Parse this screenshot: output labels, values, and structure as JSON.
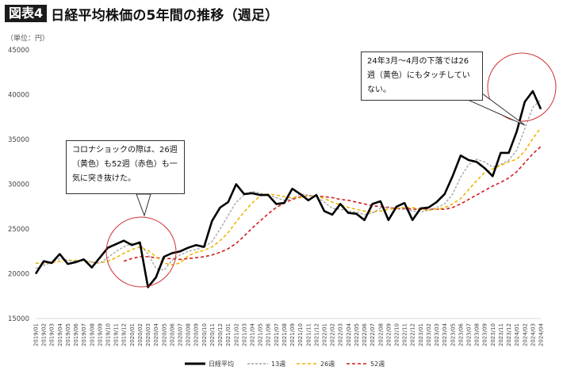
{
  "header": {
    "badge": "図表4",
    "title": "日経平均株価の5年間の推移（週足）"
  },
  "unit_label": "（単位：円）",
  "callouts": {
    "left": "コロナショックの際は、26週（黄色）も52週（赤色）も一気に突き抜けた。",
    "right": "24年3月〜4月の下落では26週（黄色）にもタッチしていない。"
  },
  "colors": {
    "nikkei": "#000000",
    "ma13": "#a0a0a0",
    "ma26": "#f2b400",
    "ma52": "#d01c1c",
    "circle": "#d03030",
    "grid": "#d9d9d9"
  },
  "chart_data": {
    "type": "line",
    "title": "日経平均株価の5年間の推移（週足）",
    "ylabel": "（単位：円）",
    "ylim": [
      15000,
      45000
    ],
    "yticks": [
      15000,
      20000,
      25000,
      30000,
      35000,
      40000,
      45000
    ],
    "x_start": "2019/01",
    "x_end": "2024/04",
    "categories": [
      "2019/01",
      "2019/02",
      "2019/03",
      "2019/04",
      "2019/05",
      "2019/06",
      "2019/07",
      "2019/08",
      "2019/09",
      "2019/10",
      "2019/11",
      "2019/12",
      "2020/01",
      "2020/02",
      "2020/03",
      "2020/04",
      "2020/05",
      "2020/06",
      "2020/07",
      "2020/08",
      "2020/09",
      "2020/10",
      "2020/11",
      "2020/12",
      "2021/01",
      "2021/02",
      "2021/03",
      "2021/04",
      "2021/05",
      "2021/06",
      "2021/07",
      "2021/08",
      "2021/09",
      "2021/10",
      "2021/11",
      "2021/12",
      "2022/01",
      "2022/02",
      "2022/03",
      "2022/04",
      "2022/05",
      "2022/06",
      "2022/07",
      "2022/08",
      "2022/09",
      "2022/10",
      "2022/11",
      "2022/12",
      "2023/01",
      "2023/02",
      "2023/03",
      "2023/04",
      "2023/05",
      "2023/06",
      "2023/07",
      "2023/08",
      "2023/09",
      "2023/10",
      "2023/11",
      "2023/12",
      "2024/01",
      "2024/02",
      "2024/03",
      "2024/04"
    ],
    "legend_position": "bottom",
    "grid": false,
    "series": [
      {
        "name": "日経平均",
        "style": "solid",
        "values": [
          20000,
          21400,
          21200,
          22200,
          21100,
          21300,
          21600,
          20700,
          21800,
          22900,
          23300,
          23700,
          23200,
          23500,
          18500,
          19600,
          21900,
          22300,
          22500,
          22900,
          23200,
          23000,
          25900,
          27400,
          28000,
          30000,
          28900,
          29000,
          28800,
          28800,
          27800,
          27900,
          29500,
          28900,
          28200,
          28800,
          27000,
          26600,
          27800,
          26800,
          26700,
          26000,
          27800,
          28100,
          26000,
          27500,
          27900,
          26000,
          27300,
          27400,
          28000,
          28900,
          30900,
          33200,
          32700,
          32500,
          31800,
          30900,
          33500,
          33500,
          35900,
          39200,
          40400,
          38400
        ]
      },
      {
        "name": "13週",
        "style": "dashed",
        "values": [
          20600,
          20900,
          21300,
          21700,
          21500,
          21400,
          21500,
          21300,
          21200,
          21800,
          22500,
          23000,
          23400,
          23300,
          22200,
          20600,
          20400,
          21500,
          22100,
          22500,
          22700,
          23000,
          23600,
          25000,
          26500,
          28000,
          28800,
          29200,
          29000,
          28800,
          28500,
          28200,
          28400,
          28900,
          28800,
          28600,
          28000,
          27300,
          27200,
          27000,
          26900,
          26600,
          26800,
          27300,
          27500,
          27200,
          27200,
          27000,
          26900,
          27100,
          27400,
          27800,
          28900,
          30800,
          32200,
          32800,
          32500,
          31900,
          32200,
          32700,
          33800,
          36200,
          38600,
          39400
        ]
      },
      {
        "name": "26週",
        "style": "dashed",
        "values": [
          21200,
          21100,
          21200,
          21400,
          21500,
          21500,
          21500,
          21300,
          21200,
          21400,
          21800,
          22300,
          22700,
          23000,
          22600,
          21900,
          21200,
          21000,
          21200,
          22000,
          22400,
          22600,
          23000,
          23700,
          24600,
          25800,
          26900,
          27900,
          28700,
          28900,
          28800,
          28600,
          28500,
          28500,
          28700,
          28700,
          28400,
          28000,
          27700,
          27400,
          27200,
          27000,
          26900,
          27000,
          27200,
          27300,
          27400,
          27400,
          27200,
          27100,
          27200,
          27400,
          27800,
          28400,
          29400,
          30400,
          31300,
          31700,
          32100,
          32500,
          32800,
          33700,
          35100,
          36300
        ]
      },
      {
        "name": "52週",
        "style": "dashed",
        "values": [
          null,
          null,
          null,
          null,
          null,
          null,
          null,
          null,
          null,
          null,
          null,
          21400,
          21700,
          21900,
          21900,
          21800,
          21700,
          21700,
          21600,
          21700,
          21800,
          21900,
          22100,
          22400,
          22800,
          23400,
          24200,
          25100,
          25900,
          26700,
          27400,
          27900,
          28300,
          28600,
          28700,
          28700,
          28600,
          28500,
          28300,
          28200,
          28000,
          27800,
          27600,
          27500,
          27400,
          27300,
          27300,
          27200,
          27200,
          27200,
          27200,
          27200,
          27400,
          27800,
          28300,
          28800,
          29300,
          29800,
          30200,
          30700,
          31400,
          32400,
          33400,
          34200
        ]
      }
    ]
  },
  "legend": {
    "items": [
      "日経平均",
      "13週",
      "26週",
      "52週"
    ]
  }
}
